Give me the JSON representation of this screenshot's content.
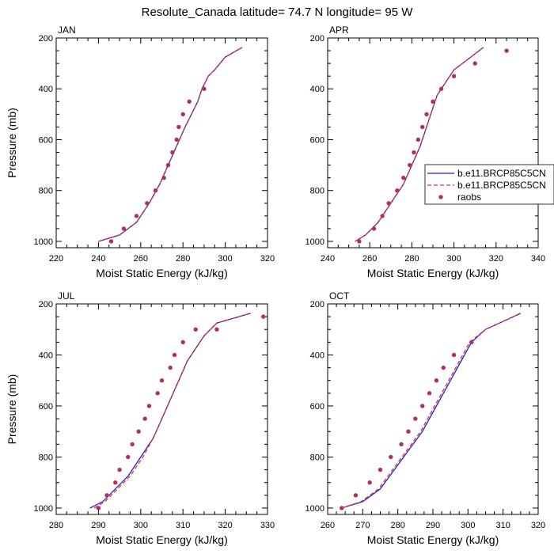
{
  "title": "Resolute_Canada  latitude= 74.7 N longitude= 95 W",
  "chart_data": [
    {
      "type": "line",
      "panel": "JAN",
      "xlabel": "Moist Static Energy (kJ/kg)",
      "ylabel": "Pressure (mb)",
      "xlim": [
        220,
        320
      ],
      "ylim": [
        1025,
        200
      ],
      "xticks": [
        220,
        240,
        260,
        280,
        300,
        320
      ],
      "yticks": [
        200,
        400,
        600,
        800,
        1000
      ],
      "series": [
        {
          "name": "b.e11.BRCP85C5CN",
          "style": "solid",
          "color": "#2222cc",
          "x": [
            240,
            250,
            258,
            264,
            269,
            273,
            277,
            281,
            284,
            287,
            289,
            292,
            295,
            300,
            308
          ],
          "y": [
            1000,
            975,
            925,
            850,
            775,
            700,
            625,
            550,
            500,
            450,
            400,
            350,
            325,
            275,
            237
          ]
        },
        {
          "name": "b.e11.BRCP85C5CN",
          "style": "dashed",
          "color": "#dd3333",
          "x": [
            240,
            250,
            258,
            264,
            269,
            273,
            277,
            281,
            284,
            287,
            289,
            292,
            295,
            300,
            308
          ],
          "y": [
            1000,
            975,
            925,
            850,
            775,
            700,
            625,
            550,
            500,
            450,
            400,
            350,
            325,
            275,
            237
          ]
        },
        {
          "name": "raobs",
          "style": "markers",
          "color": "#b03060",
          "x": [
            246,
            252,
            258,
            263,
            267,
            271,
            273,
            275,
            277,
            278,
            280,
            283,
            290
          ],
          "y": [
            1000,
            950,
            900,
            850,
            800,
            750,
            700,
            650,
            600,
            550,
            500,
            450,
            400
          ]
        }
      ]
    },
    {
      "type": "line",
      "panel": "APR",
      "xlabel": "Moist Static Energy (kJ/kg)",
      "ylabel": "",
      "xlim": [
        240,
        340
      ],
      "ylim": [
        1025,
        200
      ],
      "xticks": [
        240,
        260,
        280,
        300,
        320,
        340
      ],
      "yticks": [
        200,
        400,
        600,
        800,
        1000
      ],
      "series": [
        {
          "name": "b.e11.BRCP85C5CN",
          "style": "solid",
          "color": "#2222cc",
          "x": [
            253,
            258,
            264,
            268,
            272,
            276,
            280,
            284,
            287,
            289,
            292,
            296,
            300,
            308,
            314
          ],
          "y": [
            1000,
            975,
            925,
            875,
            825,
            775,
            700,
            625,
            550,
            500,
            425,
            375,
            325,
            275,
            237
          ]
        },
        {
          "name": "b.e11.BRCP85C5CN",
          "style": "dashed",
          "color": "#dd3333",
          "x": [
            253,
            258,
            264,
            268,
            272,
            276,
            280,
            284,
            287,
            289,
            292,
            296,
            300,
            308,
            314
          ],
          "y": [
            1000,
            975,
            925,
            875,
            825,
            775,
            700,
            625,
            550,
            500,
            425,
            375,
            325,
            275,
            237
          ]
        },
        {
          "name": "raobs",
          "style": "markers",
          "color": "#b03060",
          "x": [
            255,
            262,
            266,
            269,
            273,
            276,
            279,
            281,
            283,
            285,
            287,
            290,
            294,
            300,
            310,
            325
          ],
          "y": [
            1000,
            950,
            900,
            850,
            800,
            750,
            700,
            650,
            600,
            550,
            500,
            450,
            400,
            350,
            300,
            250
          ]
        }
      ]
    },
    {
      "type": "line",
      "panel": "JUL",
      "xlabel": "Moist Static Energy (kJ/kg)",
      "ylabel": "Pressure (mb)",
      "xlim": [
        280,
        330
      ],
      "ylim": [
        1025,
        200
      ],
      "xticks": [
        280,
        290,
        300,
        310,
        320,
        330
      ],
      "yticks": [
        200,
        400,
        600,
        800,
        1000
      ],
      "series": [
        {
          "name": "b.e11.BRCP85C5CN",
          "style": "solid",
          "color": "#2222cc",
          "x": [
            288,
            291,
            294,
            297,
            300,
            303,
            305,
            307,
            309,
            311,
            313,
            315,
            318,
            326
          ],
          "y": [
            1000,
            975,
            925,
            875,
            800,
            725,
            650,
            575,
            500,
            425,
            375,
            325,
            275,
            237
          ]
        },
        {
          "name": "b.e11.BRCP85C5CN",
          "style": "dashed",
          "color": "#dd3333",
          "x": [
            289,
            291.5,
            294.5,
            297.5,
            300.5,
            303,
            305,
            307,
            309,
            311,
            313,
            315,
            318,
            326
          ],
          "y": [
            1000,
            975,
            925,
            875,
            800,
            725,
            650,
            575,
            500,
            425,
            375,
            325,
            275,
            237
          ]
        },
        {
          "name": "raobs",
          "style": "markers",
          "color": "#b03060",
          "x": [
            290,
            292,
            294,
            295,
            297,
            298,
            299.5,
            301,
            302,
            304,
            305,
            307,
            308,
            310,
            313,
            318,
            329
          ],
          "y": [
            1000,
            950,
            900,
            850,
            800,
            750,
            700,
            650,
            600,
            550,
            500,
            450,
            400,
            350,
            300,
            300,
            250
          ]
        }
      ]
    },
    {
      "type": "line",
      "panel": "OCT",
      "xlabel": "Moist Static Energy (kJ/kg)",
      "ylabel": "",
      "xlim": [
        260,
        320
      ],
      "ylim": [
        1025,
        200
      ],
      "xticks": [
        260,
        270,
        280,
        290,
        300,
        310,
        320
      ],
      "yticks": [
        200,
        400,
        600,
        800,
        1000
      ],
      "series": [
        {
          "name": "b.e11.BRCP85C5CN",
          "style": "solid",
          "color": "#2222cc",
          "x": [
            264,
            270,
            275,
            279,
            283,
            287,
            291,
            295,
            298,
            301,
            305,
            309,
            315
          ],
          "y": [
            1000,
            975,
            925,
            850,
            775,
            700,
            600,
            500,
            425,
            350,
            300,
            275,
            237
          ]
        },
        {
          "name": "b.e11.BRCP85C5CN",
          "style": "dashed",
          "color": "#dd3333",
          "x": [
            264,
            269.5,
            274.5,
            278.5,
            282.5,
            286.5,
            290.5,
            294.5,
            297.5,
            300.5,
            305,
            309,
            315
          ],
          "y": [
            1000,
            975,
            925,
            850,
            775,
            700,
            600,
            500,
            425,
            350,
            300,
            275,
            237
          ]
        },
        {
          "name": "raobs",
          "style": "markers",
          "color": "#b03060",
          "x": [
            264,
            268,
            272,
            275,
            278,
            281,
            283,
            285,
            287,
            289,
            291,
            293,
            296,
            301
          ],
          "y": [
            1000,
            950,
            900,
            850,
            800,
            750,
            700,
            650,
            600,
            550,
            500,
            450,
            400,
            350
          ]
        }
      ]
    }
  ],
  "legend": {
    "placement": "right-of-APR",
    "entries": [
      "b.e11.BRCP85C5CN",
      "b.e11.BRCP85C5CN",
      "raobs"
    ]
  }
}
